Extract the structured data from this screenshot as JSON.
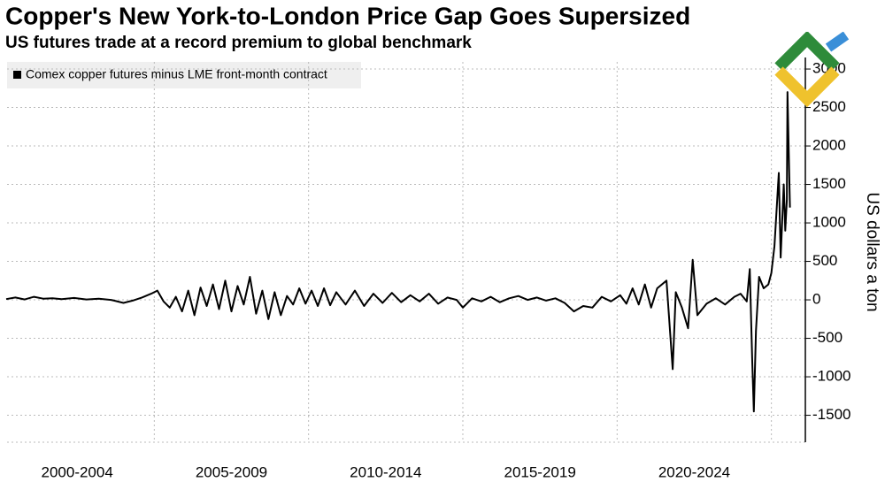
{
  "chart_data": {
    "type": "line",
    "title": "Copper's New York-to-London Price Gap Goes Supersized",
    "subtitle": "US futures trade at a record premium to global benchmark",
    "y_axis_label": "US dollars a ton",
    "y_axis_side": "right",
    "grid": true,
    "xlim": [
      2000,
      2026.1
    ],
    "ylim": [
      -1850,
      3150
    ],
    "xticks": [
      {
        "value": 2002.5,
        "label": "2000-2004"
      },
      {
        "value": 2007.5,
        "label": "2005-2009"
      },
      {
        "value": 2012.5,
        "label": "2010-2014"
      },
      {
        "value": 2017.5,
        "label": "2015-2019"
      },
      {
        "value": 2022.5,
        "label": "2020-2024"
      }
    ],
    "xgrid": [
      2005,
      2010,
      2015,
      2020,
      2025
    ],
    "yticks": [
      -1500,
      -1000,
      -500,
      0,
      500,
      1000,
      1500,
      2000,
      2500,
      3000
    ],
    "x": [
      2000.2,
      2000.5,
      2000.8,
      2001.1,
      2001.4,
      2001.7,
      2002.0,
      2002.4,
      2002.8,
      2003.2,
      2003.6,
      2004.0,
      2004.3,
      2004.6,
      2004.9,
      2005.1,
      2005.3,
      2005.5,
      2005.7,
      2005.9,
      2006.1,
      2006.3,
      2006.5,
      2006.7,
      2006.9,
      2007.1,
      2007.3,
      2007.5,
      2007.7,
      2007.9,
      2008.1,
      2008.3,
      2008.5,
      2008.7,
      2008.9,
      2009.1,
      2009.3,
      2009.5,
      2009.7,
      2009.9,
      2010.1,
      2010.3,
      2010.5,
      2010.7,
      2010.9,
      2011.2,
      2011.5,
      2011.8,
      2012.1,
      2012.4,
      2012.7,
      2013.0,
      2013.3,
      2013.6,
      2013.9,
      2014.2,
      2014.5,
      2014.8,
      2015.0,
      2015.3,
      2015.6,
      2015.9,
      2016.2,
      2016.5,
      2016.8,
      2017.1,
      2017.4,
      2017.7,
      2018.0,
      2018.3,
      2018.6,
      2018.9,
      2019.2,
      2019.5,
      2019.8,
      2020.1,
      2020.3,
      2020.5,
      2020.7,
      2020.9,
      2021.1,
      2021.3,
      2021.6,
      2021.8,
      2021.9,
      2022.1,
      2022.3,
      2022.45,
      2022.6,
      2022.9,
      2023.2,
      2023.5,
      2023.8,
      2024.0,
      2024.2,
      2024.3,
      2024.38,
      2024.43,
      2024.5,
      2024.6,
      2024.75,
      2024.9,
      2025.0,
      2025.1,
      2025.24,
      2025.3,
      2025.4,
      2025.45,
      2025.5,
      2025.52,
      2025.6
    ],
    "series": [
      {
        "name": "Comex copper futures minus LME front-month contract",
        "color": "#000000",
        "values": [
          10,
          30,
          5,
          40,
          15,
          20,
          10,
          25,
          5,
          15,
          0,
          -40,
          -10,
          30,
          80,
          120,
          -20,
          -100,
          40,
          -150,
          120,
          -200,
          160,
          -80,
          200,
          -120,
          250,
          -150,
          180,
          -60,
          300,
          -180,
          120,
          -250,
          100,
          -200,
          50,
          -60,
          150,
          -50,
          120,
          -80,
          150,
          -70,
          100,
          -60,
          120,
          -80,
          80,
          -40,
          90,
          -30,
          60,
          -20,
          80,
          -50,
          30,
          0,
          -100,
          20,
          -20,
          40,
          -30,
          20,
          50,
          0,
          30,
          -10,
          20,
          -40,
          -150,
          -80,
          -100,
          40,
          -20,
          60,
          -50,
          150,
          -60,
          200,
          -100,
          150,
          250,
          -900,
          100,
          -100,
          -370,
          520,
          -200,
          -50,
          20,
          -60,
          40,
          80,
          -20,
          400,
          -800,
          -1450,
          -400,
          300,
          150,
          200,
          350,
          700,
          1650,
          550,
          1500,
          900,
          1300,
          2700,
          1200
        ]
      }
    ]
  }
}
